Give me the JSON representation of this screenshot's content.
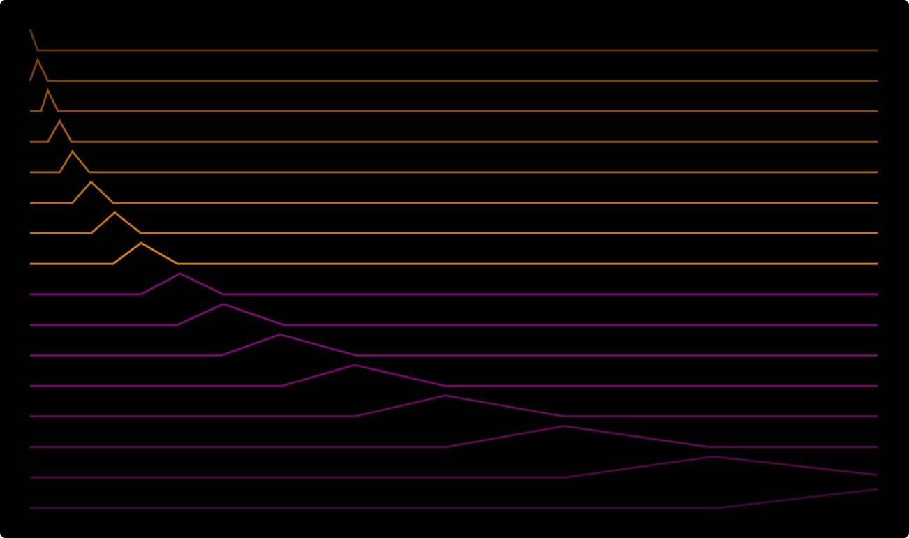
{
  "chart_data": {
    "type": "line",
    "background": "#000000",
    "xlim": [
      0,
      1
    ],
    "grid": false,
    "legend": "none",
    "series": [
      {
        "color": "#5c3508",
        "x": [
          0.0,
          0.009,
          1.0
        ],
        "y": [
          1.0,
          0.0,
          0.0
        ]
      },
      {
        "color": "#774108",
        "x": [
          0.0,
          0.009,
          0.021,
          1.0
        ],
        "y": [
          0.0,
          1.0,
          0.0,
          0.0
        ]
      },
      {
        "color": "#8a4c0b",
        "x": [
          0.0,
          0.013,
          0.021,
          0.033,
          1.0
        ],
        "y": [
          0.0,
          0.0,
          1.0,
          0.0,
          0.0
        ]
      },
      {
        "color": "#9a560d",
        "x": [
          0.0,
          0.021,
          0.035,
          0.049,
          1.0
        ],
        "y": [
          0.0,
          0.0,
          1.0,
          0.0,
          0.0
        ]
      },
      {
        "color": "#a8600f",
        "x": [
          0.0,
          0.035,
          0.05,
          0.07,
          1.0
        ],
        "y": [
          0.0,
          0.0,
          1.0,
          0.0,
          0.0
        ]
      },
      {
        "color": "#b86a12",
        "x": [
          0.0,
          0.05,
          0.072,
          0.098,
          1.0
        ],
        "y": [
          0.0,
          0.0,
          1.0,
          0.0,
          0.0
        ]
      },
      {
        "color": "#c57314",
        "x": [
          0.0,
          0.072,
          0.1,
          0.131,
          1.0
        ],
        "y": [
          0.0,
          0.0,
          1.0,
          0.0,
          0.0
        ]
      },
      {
        "color": "#d17b16",
        "x": [
          0.0,
          0.098,
          0.131,
          0.174,
          1.0
        ],
        "y": [
          0.0,
          0.0,
          1.0,
          0.0,
          0.0
        ]
      },
      {
        "color": "#7e0a72",
        "x": [
          0.0,
          0.131,
          0.177,
          0.228,
          1.0
        ],
        "y": [
          0.0,
          0.0,
          1.0,
          0.0,
          0.0
        ]
      },
      {
        "color": "#7a0a6e",
        "x": [
          0.0,
          0.174,
          0.228,
          0.299,
          1.0
        ],
        "y": [
          0.0,
          0.0,
          1.0,
          0.0,
          0.0
        ]
      },
      {
        "color": "#760a6a",
        "x": [
          0.0,
          0.226,
          0.295,
          0.385,
          1.0
        ],
        "y": [
          0.0,
          0.0,
          1.0,
          0.0,
          0.0
        ]
      },
      {
        "color": "#6f0964",
        "x": [
          0.0,
          0.297,
          0.383,
          0.49,
          1.0
        ],
        "y": [
          0.0,
          0.0,
          1.0,
          0.0,
          0.0
        ]
      },
      {
        "color": "#66085c",
        "x": [
          0.0,
          0.383,
          0.49,
          0.63,
          1.0
        ],
        "y": [
          0.0,
          0.0,
          1.0,
          0.0,
          0.0
        ]
      },
      {
        "color": "#5a0751",
        "x": [
          0.0,
          0.492,
          0.63,
          0.8,
          1.0
        ],
        "y": [
          0.0,
          0.0,
          1.0,
          0.0,
          0.0
        ]
      },
      {
        "color": "#4c0644",
        "x": [
          0.0,
          0.63,
          0.806,
          1.0
        ],
        "y": [
          0.0,
          0.0,
          1.0,
          0.122
        ]
      },
      {
        "color": "#3d0537",
        "x": [
          0.0,
          0.811,
          1.0
        ],
        "y": [
          0.0,
          0.0,
          0.9
        ]
      }
    ]
  }
}
